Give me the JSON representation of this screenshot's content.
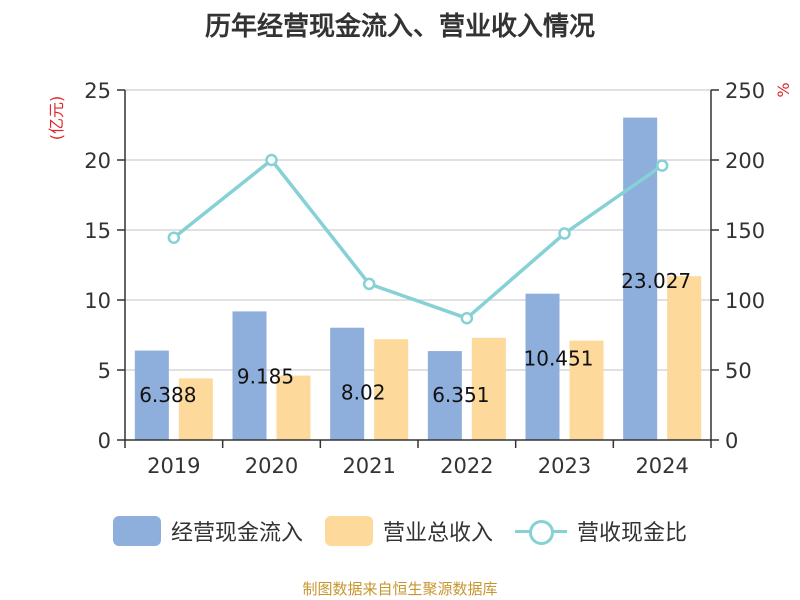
{
  "chart_data": {
    "type": "bar",
    "title": "历年经营现金流入、营业收入情况",
    "categories": [
      "2019",
      "2020",
      "2021",
      "2022",
      "2023",
      "2024"
    ],
    "left_axis": {
      "label": "(亿元)",
      "ylim": [
        0,
        25
      ],
      "ticks": [
        "0",
        "5",
        "10",
        "15",
        "20",
        "25"
      ]
    },
    "right_axis": {
      "label": "%",
      "ylim": [
        0,
        250
      ],
      "ticks": [
        "0",
        "50",
        "100",
        "150",
        "200",
        "250"
      ]
    },
    "series": [
      {
        "name": "经营现金流入",
        "type": "bar",
        "axis": "left",
        "color": "#8eaedc",
        "values": [
          6.388,
          9.185,
          8.02,
          6.351,
          10.451,
          23.027
        ],
        "labels": [
          "6.388",
          "9.185",
          "8.02",
          "6.351",
          "10.451",
          "23.027"
        ]
      },
      {
        "name": "营业总收入",
        "type": "bar",
        "axis": "left",
        "color": "#fdd99b",
        "values": [
          4.4,
          4.6,
          7.2,
          7.3,
          7.1,
          11.7
        ]
      },
      {
        "name": "营收现金比",
        "type": "line",
        "axis": "right",
        "color": "#86d1d5",
        "values": [
          144.5,
          200,
          111.5,
          87,
          147.5,
          196
        ]
      }
    ],
    "grid": true,
    "legend_position": "bottom"
  },
  "source": "制图数据来自恒生聚源数据库"
}
